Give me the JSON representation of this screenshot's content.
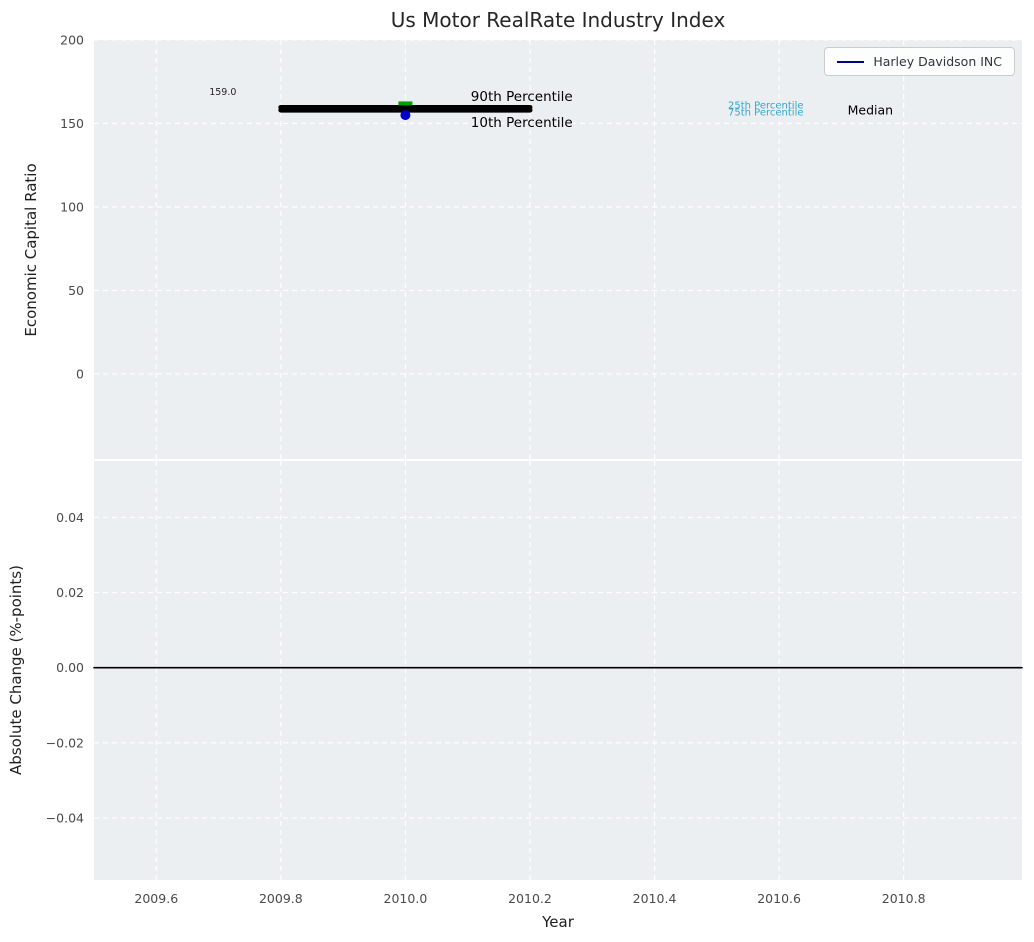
{
  "title": "Us Motor RealRate Industry Index",
  "xlabel": "Year",
  "legend": {
    "label": "Harley Davidson INC",
    "line_color": "#00008b"
  },
  "style": {
    "plot_bg": "#eceff1",
    "grid_color": "#ffffff",
    "tick_color": "#4a4a4a",
    "company_color": "#0000cd",
    "median_color": "#00a000",
    "percentile_band_color": "#000000",
    "quartile_text_color": "#2fa8cc"
  },
  "chart_data": [
    {
      "type": "line",
      "title": "Us Motor RealRate Industry Index",
      "ylabel": "Economic Capital Ratio",
      "xlim": [
        2009.5,
        2010.99
      ],
      "ylim": [
        -51,
        200
      ],
      "grid": true,
      "legend_position": "upper right",
      "legend_entries": [
        "Harley Davidson INC"
      ],
      "xticks": [
        {
          "v": 2009.6,
          "label": "2009.6"
        },
        {
          "v": 2009.8,
          "label": "2009.8"
        },
        {
          "v": 2010.0,
          "label": "2010.0"
        },
        {
          "v": 2010.2,
          "label": "2010.2"
        },
        {
          "v": 2010.4,
          "label": "2010.4"
        },
        {
          "v": 2010.6,
          "label": "2010.6"
        },
        {
          "v": 2010.8,
          "label": "2010.8"
        }
      ],
      "yticks": [
        {
          "v": 0,
          "label": "0"
        },
        {
          "v": 50,
          "label": "50"
        },
        {
          "v": 100,
          "label": "100"
        },
        {
          "v": 150,
          "label": "150"
        },
        {
          "v": 200,
          "label": "200"
        }
      ],
      "series": [
        {
          "name": "90th Percentile",
          "kind": "line",
          "color": "#000000",
          "width": 5,
          "x": [
            2009.8,
            2010.2
          ],
          "y": [
            159.6,
            159.6
          ]
        },
        {
          "name": "10th Percentile",
          "kind": "line",
          "color": "#000000",
          "width": 5,
          "x": [
            2009.8,
            2010.2
          ],
          "y": [
            158.0,
            158.0
          ]
        },
        {
          "name": "Median",
          "kind": "marker",
          "marker": "tick",
          "color": "#00a000",
          "x": 2010.0,
          "y": 162.0
        },
        {
          "name": "Harley Davidson INC",
          "kind": "marker",
          "marker": "dot",
          "color": "#0000cd",
          "x": 2010.0,
          "y": 155.0
        }
      ],
      "annotations": [
        {
          "text": "159.0",
          "x": 2009.685,
          "y": 167.0,
          "color": "#262626",
          "size": 9.5
        },
        {
          "text": "90th Percentile",
          "x": 2010.105,
          "y": 163.5,
          "color": "#000000",
          "size": 13.5
        },
        {
          "text": "10th Percentile",
          "x": 2010.105,
          "y": 148.0,
          "color": "#000000",
          "size": 13.5
        },
        {
          "text": "25th Percentile",
          "x": 2010.518,
          "y": 159.0,
          "color": "#2fa8cc",
          "size": 10
        },
        {
          "text": "75th Percentile",
          "x": 2010.518,
          "y": 154.8,
          "color": "#2fa8cc",
          "size": 10
        },
        {
          "text": "Median",
          "x": 2010.71,
          "y": 155.5,
          "color": "#000000",
          "size": 12.5
        }
      ]
    },
    {
      "type": "line",
      "ylabel": "Absolute Change (%-points)",
      "xlabel": "Year",
      "xlim": [
        2009.5,
        2010.99
      ],
      "ylim": [
        -0.0565,
        0.055
      ],
      "grid": true,
      "xticks": [
        {
          "v": 2009.6,
          "label": "2009.6"
        },
        {
          "v": 2009.8,
          "label": "2009.8"
        },
        {
          "v": 2010.0,
          "label": "2010.0"
        },
        {
          "v": 2010.2,
          "label": "2010.2"
        },
        {
          "v": 2010.4,
          "label": "2010.4"
        },
        {
          "v": 2010.6,
          "label": "2010.6"
        },
        {
          "v": 2010.8,
          "label": "2010.8"
        }
      ],
      "yticks": [
        {
          "v": -0.04,
          "label": "−0.04"
        },
        {
          "v": -0.02,
          "label": "−0.02"
        },
        {
          "v": 0.0,
          "label": "0.00"
        },
        {
          "v": 0.02,
          "label": "0.02"
        },
        {
          "v": 0.04,
          "label": "0.04"
        }
      ],
      "series": [
        {
          "name": "zero-change-line",
          "kind": "line",
          "color": "#000000",
          "width": 1.6,
          "x": [
            2009.5,
            2010.99
          ],
          "y": [
            0,
            0
          ]
        }
      ],
      "annotations": []
    }
  ]
}
